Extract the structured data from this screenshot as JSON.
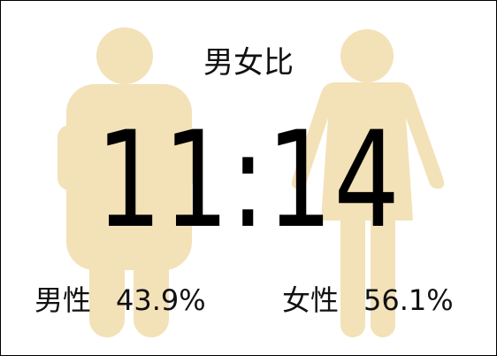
{
  "title": "男女比",
  "ratio": "11:14",
  "male": {
    "label": "男性",
    "percent": "43.9%"
  },
  "female": {
    "label": "女性",
    "percent": "56.1%"
  },
  "colors": {
    "figure": "#f3e1b8",
    "text": "#111111",
    "border": "#000000",
    "background": "#ffffff"
  },
  "icons": {
    "male": "male-person-icon",
    "female": "female-person-icon"
  }
}
